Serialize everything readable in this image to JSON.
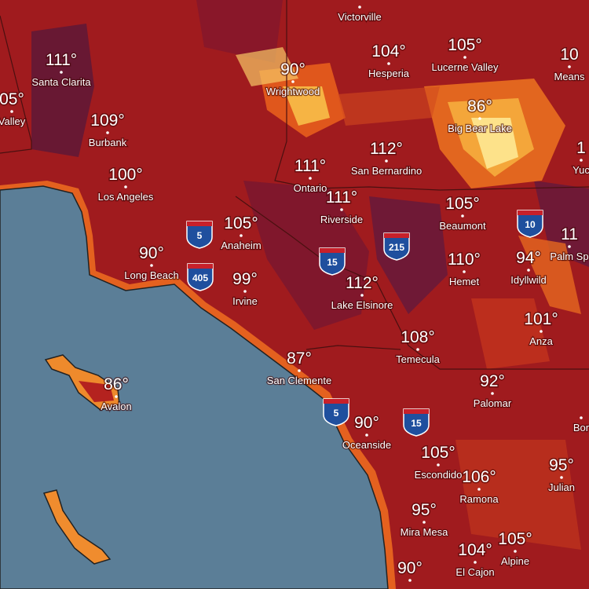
{
  "cities": [
    {
      "name": "Victorville"
    },
    {
      "name": "Santa Clarita",
      "temp": "111°"
    },
    {
      "name": "Valley",
      "temp": "05°"
    },
    {
      "name": "Burbank",
      "temp": "109°"
    },
    {
      "name": "Los Angeles",
      "temp": "100°"
    },
    {
      "name": "Wrightwood",
      "temp": "90°"
    },
    {
      "name": "Hesperia",
      "temp": "104°"
    },
    {
      "name": "Lucerne Valley",
      "temp": "105°"
    },
    {
      "name": "Means",
      "temp": "10"
    },
    {
      "name": "Big Bear Lake",
      "temp": "86°"
    },
    {
      "name": "Yuc",
      "temp": "1"
    },
    {
      "name": "San Bernardino",
      "temp": "112°"
    },
    {
      "name": "Ontario",
      "temp": "111°"
    },
    {
      "name": "Riverside",
      "temp": "111°"
    },
    {
      "name": "Beaumont",
      "temp": "105°"
    },
    {
      "name": "Palm Sp",
      "temp": "11"
    },
    {
      "name": "Anaheim",
      "temp": "105°"
    },
    {
      "name": "Long Beach",
      "temp": "90°"
    },
    {
      "name": "Irvine",
      "temp": "99°"
    },
    {
      "name": "Hemet",
      "temp": "110°"
    },
    {
      "name": "Idyllwild",
      "temp": "94°"
    },
    {
      "name": "Lake Elsinore",
      "temp": "112°"
    },
    {
      "name": "Anza",
      "temp": "101°"
    },
    {
      "name": "Temecula",
      "temp": "108°"
    },
    {
      "name": "San Clemente",
      "temp": "87°"
    },
    {
      "name": "Avalon",
      "temp": "86°"
    },
    {
      "name": "Palomar",
      "temp": "92°"
    },
    {
      "name": "Oceanside",
      "temp": "90°"
    },
    {
      "name": "Escondido",
      "temp": "105°"
    },
    {
      "name": "Ramona",
      "temp": "106°"
    },
    {
      "name": "Julian",
      "temp": "95°"
    },
    {
      "name": "Bor"
    },
    {
      "name": "Mira Mesa",
      "temp": "95°"
    },
    {
      "name": "El Cajon",
      "temp": "104°"
    },
    {
      "name": "Alpine",
      "temp": "105°"
    },
    {
      "temp": "90°"
    }
  ],
  "highways": [
    "5",
    "405",
    "15",
    "215",
    "10",
    "5",
    "15"
  ]
}
